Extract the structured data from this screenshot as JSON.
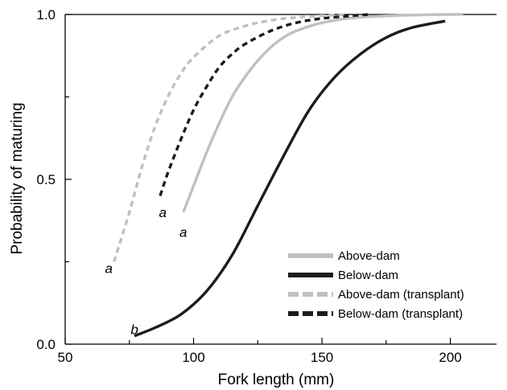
{
  "chart_data": {
    "type": "line",
    "title": "",
    "xlabel": "Fork length (mm)",
    "ylabel": "Probability of maturing",
    "xlim": [
      50,
      218
    ],
    "ylim": [
      0.0,
      1.0
    ],
    "xticks": [
      50,
      100,
      150,
      200
    ],
    "xtick_minor": [
      75,
      125,
      175
    ],
    "yticks": [
      0.0,
      0.5,
      1.0
    ],
    "ytick_labels": [
      "0.0",
      "0.5",
      "1.0"
    ],
    "ytick_minor": [
      0.25,
      0.75
    ],
    "grid": false,
    "legend_position": "lower-right",
    "series": [
      {
        "name": "Above-dam",
        "color": "#c0c0c0",
        "dash": "solid",
        "x": [
          96,
          100,
          105,
          110,
          115,
          120,
          125,
          130,
          135,
          140,
          150,
          160,
          170,
          180,
          190,
          200,
          205
        ],
        "y": [
          0.4,
          0.48,
          0.58,
          0.67,
          0.75,
          0.81,
          0.86,
          0.9,
          0.93,
          0.95,
          0.975,
          0.988,
          0.994,
          0.997,
          0.999,
          1.0,
          1.0
        ]
      },
      {
        "name": "Below-dam",
        "color": "#1c1c1c",
        "dash": "solid",
        "x": [
          77,
          85,
          95,
          105,
          115,
          125,
          135,
          145,
          155,
          165,
          175,
          185,
          198
        ],
        "y": [
          0.025,
          0.05,
          0.09,
          0.16,
          0.27,
          0.42,
          0.57,
          0.71,
          0.81,
          0.88,
          0.93,
          0.96,
          0.98
        ]
      },
      {
        "name": "Above-dam (transplant)",
        "color": "#c0c0c0",
        "dash": "dashed",
        "x": [
          69,
          75,
          80,
          85,
          90,
          95,
          100,
          110,
          120,
          130,
          140,
          150,
          160
        ],
        "y": [
          0.25,
          0.4,
          0.54,
          0.66,
          0.75,
          0.82,
          0.87,
          0.935,
          0.965,
          0.982,
          0.991,
          0.996,
          1.0
        ]
      },
      {
        "name": "Below-dam (transplant)",
        "color": "#1c1c1c",
        "dash": "dashed",
        "x": [
          87,
          90,
          95,
          100,
          105,
          110,
          115,
          120,
          130,
          140,
          150,
          160,
          168
        ],
        "y": [
          0.45,
          0.52,
          0.62,
          0.71,
          0.78,
          0.84,
          0.88,
          0.91,
          0.95,
          0.975,
          0.988,
          0.995,
          1.0
        ]
      }
    ],
    "annotations": [
      {
        "text": "a",
        "x": 67,
        "y": 0.23
      },
      {
        "text": "a",
        "x": 88,
        "y": 0.4
      },
      {
        "text": "a",
        "x": 96,
        "y": 0.34
      },
      {
        "text": "b",
        "x": 77,
        "y": 0.045
      }
    ]
  }
}
